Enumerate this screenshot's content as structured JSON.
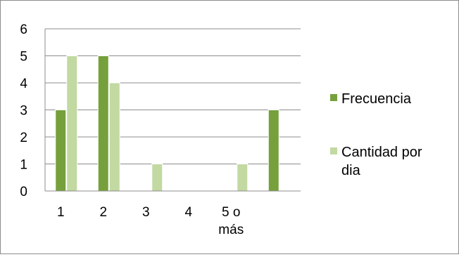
{
  "chart_data": {
    "type": "bar",
    "categories": [
      [
        "1"
      ],
      [
        "2"
      ],
      [
        "3"
      ],
      [
        "4"
      ],
      [
        "5 o",
        "más"
      ],
      [
        ""
      ]
    ],
    "series": [
      {
        "name": "Frecuencia",
        "color": "#76a03c",
        "values": [
          3,
          5,
          null,
          null,
          null,
          3
        ]
      },
      {
        "name": "Cantidad por dia",
        "color": "#c2d9a2",
        "values": [
          5,
          4,
          1,
          null,
          1,
          null
        ]
      }
    ],
    "legend": {
      "position": "right",
      "entries": [
        {
          "lines": [
            "Frecuencia"
          ]
        },
        {
          "lines": [
            "Cantidad por",
            "dia"
          ]
        }
      ]
    },
    "ylim": [
      0,
      6
    ],
    "yticks": [
      "0",
      "1",
      "2",
      "3",
      "4",
      "5",
      "6"
    ],
    "grid": true,
    "title": "",
    "xlabel": "",
    "ylabel": ""
  }
}
